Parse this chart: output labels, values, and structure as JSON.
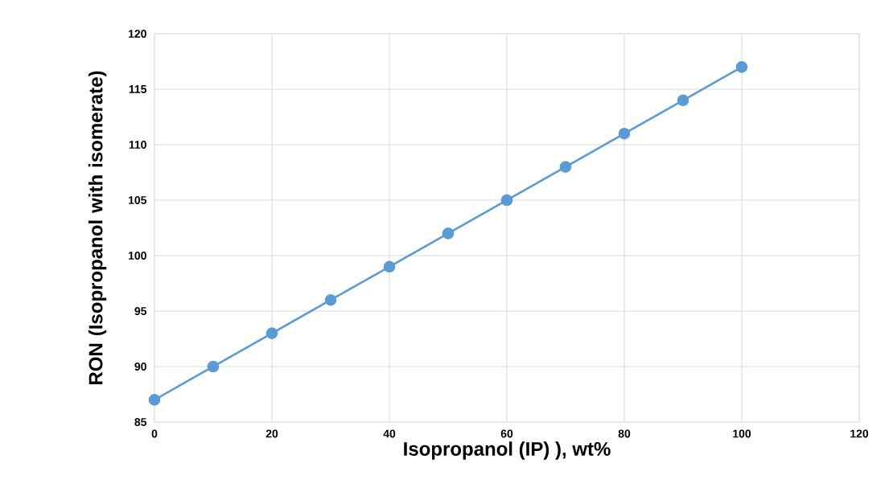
{
  "chart_data": {
    "type": "line",
    "xlabel": "Isopropanol (IP) ), wt%",
    "ylabel": "RON (Isopropanol with isomerate)",
    "x": [
      0,
      10,
      20,
      30,
      40,
      50,
      60,
      70,
      80,
      90,
      100
    ],
    "series": [
      {
        "color": "#5b9bd5",
        "values": [
          87,
          90,
          93,
          96,
          99,
          102,
          105,
          108,
          111,
          114,
          117
        ]
      }
    ],
    "xlim": [
      0,
      120
    ],
    "xticks": [
      0,
      20,
      40,
      60,
      80,
      100,
      120
    ],
    "ylim": [
      85,
      120
    ],
    "yticks": [
      85,
      90,
      95,
      100,
      105,
      110,
      115,
      120
    ],
    "grid": true,
    "marker": "circle",
    "line_style": "solid",
    "legend": false
  }
}
